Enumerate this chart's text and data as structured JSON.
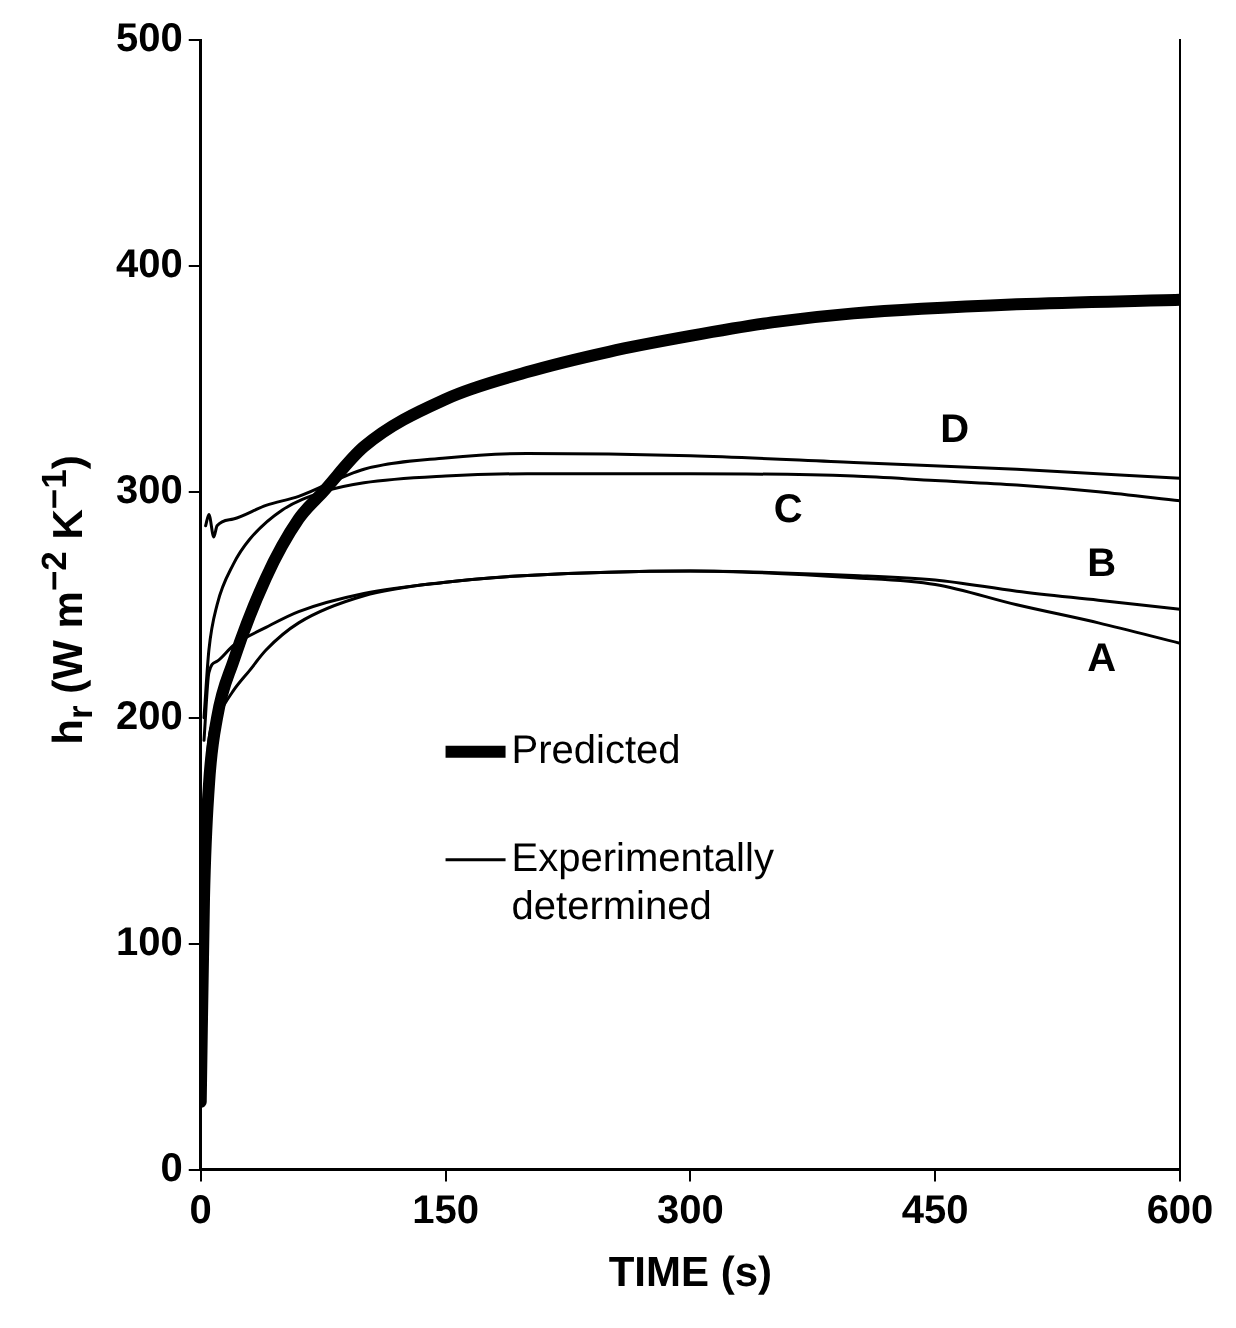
{
  "chart_data": {
    "type": "line",
    "xlabel": "TIME (s)",
    "ylabel": "h$_{r}$ (W m$^{−2}$ K$^{−1}$)",
    "xlim": [
      0,
      600
    ],
    "xticks": [
      0,
      150,
      300,
      450,
      600
    ],
    "ylim": [
      0,
      500
    ],
    "yticks": [
      0,
      100,
      200,
      300,
      400,
      500
    ],
    "grid": false,
    "legend": "center",
    "marker": "none",
    "line_style": "solid",
    "series": [
      {
        "name": "Predicted",
        "color": "#000000",
        "x": [
          0,
          2,
          5,
          10,
          20,
          40,
          60,
          75,
          100,
          150,
          200,
          250,
          300,
          350,
          400,
          500,
          600
        ],
        "values": [
          30,
          120,
          170,
          200,
          225,
          262,
          288,
          300,
          320,
          341,
          353,
          362,
          369,
          375,
          379,
          383,
          385
        ]
      },
      {
        "name": "A",
        "color": "#000000",
        "x": [
          2,
          5,
          10,
          20,
          30,
          40,
          60,
          100,
          150,
          200,
          300,
          400,
          450,
          500,
          550,
          600
        ],
        "values": [
          160,
          190,
          200,
          212,
          221,
          230,
          242,
          254,
          260,
          263,
          265,
          262,
          259,
          250,
          242,
          233
        ]
      },
      {
        "name": "B",
        "color": "#000000",
        "x": [
          2,
          5,
          10,
          20,
          40,
          60,
          100,
          150,
          200,
          300,
          400,
          450,
          500,
          550,
          600
        ],
        "values": [
          190,
          220,
          225,
          232,
          240,
          247,
          255,
          260,
          263,
          265,
          263,
          261,
          256,
          252,
          248
        ]
      },
      {
        "name": "C",
        "color": "#000000",
        "x": [
          2,
          5,
          10,
          20,
          30,
          50,
          75,
          100,
          150,
          200,
          300,
          400,
          450,
          500,
          550,
          600
        ],
        "values": [
          200,
          230,
          250,
          268,
          279,
          292,
          300,
          304,
          307,
          308,
          308,
          307,
          305,
          303,
          300,
          296
        ]
      },
      {
        "name": "D",
        "color": "#000000",
        "x": [
          3,
          5,
          8,
          10,
          20,
          40,
          60,
          100,
          150,
          200,
          300,
          400,
          500,
          600
        ],
        "values": [
          285,
          290,
          280,
          285,
          288,
          294,
          298,
          310,
          315,
          317,
          316,
          313,
          310,
          306
        ]
      }
    ],
    "annotations": [
      "Experimentally determined"
    ]
  }
}
